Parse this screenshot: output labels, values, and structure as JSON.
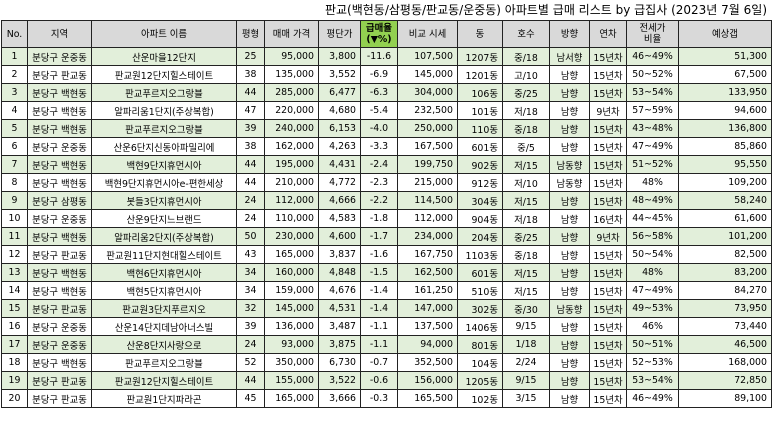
{
  "title": "판교(백현동/삼평동/판교동/운중동) 아파트별 급매 리스트 by 급집사 (2023년 7월 6일)",
  "headers": [
    "No.",
    "지역",
    "아파트 이름",
    "평형",
    "매매 가격",
    "평단가",
    "급매율\n(▼%)",
    "비교 시세",
    "동",
    "호수",
    "방향",
    "연차",
    "전세가\n비율",
    "예상갭"
  ],
  "colors": {
    "header_bg": "#d9d9d9",
    "rate_header_bg": "#92d050",
    "row_band": "#e2efda"
  },
  "rows": [
    {
      "no": "1",
      "region": "분당구 운중동",
      "apt": "산운마을12단지",
      "size": "25",
      "price": "95,000",
      "ppy": "3,800",
      "rate": "-11.6",
      "compare": "107,500",
      "dong": "1207동",
      "ho": "중/18",
      "dir": "남서향",
      "year": "15년차",
      "ratio": "46~49%",
      "gap": "51,300"
    },
    {
      "no": "2",
      "region": "분당구 판교동",
      "apt": "판교원12단지힐스테이트",
      "size": "38",
      "price": "135,000",
      "ppy": "3,552",
      "rate": "-6.9",
      "compare": "145,000",
      "dong": "1201동",
      "ho": "고/10",
      "dir": "남향",
      "year": "15년차",
      "ratio": "50~52%",
      "gap": "67,500"
    },
    {
      "no": "3",
      "region": "분당구 백현동",
      "apt": "판교푸르지오그랑블",
      "size": "44",
      "price": "285,000",
      "ppy": "6,477",
      "rate": "-6.3",
      "compare": "304,000",
      "dong": "106동",
      "ho": "중/25",
      "dir": "남향",
      "year": "15년차",
      "ratio": "53~54%",
      "gap": "133,950"
    },
    {
      "no": "4",
      "region": "분당구 백현동",
      "apt": "알파리움1단지(주상복합)",
      "size": "47",
      "price": "220,000",
      "ppy": "4,680",
      "rate": "-5.4",
      "compare": "232,500",
      "dong": "101동",
      "ho": "저/18",
      "dir": "남향",
      "year": "9년차",
      "ratio": "57~59%",
      "gap": "94,600"
    },
    {
      "no": "5",
      "region": "분당구 백현동",
      "apt": "판교푸르지오그랑블",
      "size": "39",
      "price": "240,000",
      "ppy": "6,153",
      "rate": "-4.0",
      "compare": "250,000",
      "dong": "110동",
      "ho": "중/18",
      "dir": "남향",
      "year": "15년차",
      "ratio": "43~48%",
      "gap": "136,800"
    },
    {
      "no": "6",
      "region": "분당구 운중동",
      "apt": "산운6단지신동아파밀리에",
      "size": "38",
      "price": "162,000",
      "ppy": "4,263",
      "rate": "-3.3",
      "compare": "167,500",
      "dong": "601동",
      "ho": "중/5",
      "dir": "남향",
      "year": "15년차",
      "ratio": "47~49%",
      "gap": "85,860"
    },
    {
      "no": "7",
      "region": "분당구 백현동",
      "apt": "백현9단지휴먼시아",
      "size": "44",
      "price": "195,000",
      "ppy": "4,431",
      "rate": "-2.4",
      "compare": "199,750",
      "dong": "902동",
      "ho": "저/15",
      "dir": "남동향",
      "year": "15년차",
      "ratio": "51~52%",
      "gap": "95,550"
    },
    {
      "no": "8",
      "region": "분당구 백현동",
      "apt": "백현9단지휴먼시아e-편한세상",
      "size": "44",
      "price": "210,000",
      "ppy": "4,772",
      "rate": "-2.3",
      "compare": "215,000",
      "dong": "912동",
      "ho": "저/10",
      "dir": "남동향",
      "year": "15년차",
      "ratio": "48%",
      "gap": "109,200"
    },
    {
      "no": "9",
      "region": "분당구 삼평동",
      "apt": "봇들3단지휴먼시아",
      "size": "24",
      "price": "112,000",
      "ppy": "4,666",
      "rate": "-2.2",
      "compare": "114,500",
      "dong": "304동",
      "ho": "저/15",
      "dir": "남향",
      "year": "15년차",
      "ratio": "48~49%",
      "gap": "58,240"
    },
    {
      "no": "10",
      "region": "분당구 운중동",
      "apt": "산운9단지느브랜드",
      "size": "24",
      "price": "110,000",
      "ppy": "4,583",
      "rate": "-1.8",
      "compare": "112,000",
      "dong": "904동",
      "ho": "저/18",
      "dir": "남향",
      "year": "16년차",
      "ratio": "44~45%",
      "gap": "61,600"
    },
    {
      "no": "11",
      "region": "분당구 백현동",
      "apt": "알파리움2단지(주상복합)",
      "size": "50",
      "price": "230,000",
      "ppy": "4,600",
      "rate": "-1.7",
      "compare": "234,000",
      "dong": "204동",
      "ho": "중/25",
      "dir": "남향",
      "year": "9년차",
      "ratio": "56~58%",
      "gap": "101,200"
    },
    {
      "no": "12",
      "region": "분당구 판교동",
      "apt": "판교원11단지현대힐스테이트",
      "size": "43",
      "price": "165,000",
      "ppy": "3,837",
      "rate": "-1.6",
      "compare": "167,750",
      "dong": "1103동",
      "ho": "중/18",
      "dir": "남향",
      "year": "15년차",
      "ratio": "50~54%",
      "gap": "82,500"
    },
    {
      "no": "13",
      "region": "분당구 백현동",
      "apt": "백현6단지휴먼시아",
      "size": "34",
      "price": "160,000",
      "ppy": "4,848",
      "rate": "-1.5",
      "compare": "162,500",
      "dong": "601동",
      "ho": "저/15",
      "dir": "남향",
      "year": "15년차",
      "ratio": "48%",
      "gap": "83,200"
    },
    {
      "no": "14",
      "region": "분당구 백현동",
      "apt": "백현5단지휴먼시아",
      "size": "34",
      "price": "159,000",
      "ppy": "4,676",
      "rate": "-1.4",
      "compare": "161,250",
      "dong": "510동",
      "ho": "저/15",
      "dir": "남향",
      "year": "15년차",
      "ratio": "47~49%",
      "gap": "84,270"
    },
    {
      "no": "15",
      "region": "분당구 판교동",
      "apt": "판교원3단지푸르지오",
      "size": "32",
      "price": "145,000",
      "ppy": "4,531",
      "rate": "-1.4",
      "compare": "147,000",
      "dong": "302동",
      "ho": "중/30",
      "dir": "남동향",
      "year": "15년차",
      "ratio": "49~53%",
      "gap": "73,950"
    },
    {
      "no": "16",
      "region": "분당구 운중동",
      "apt": "산운14단지데남아너스빌",
      "size": "39",
      "price": "136,000",
      "ppy": "3,487",
      "rate": "-1.1",
      "compare": "137,500",
      "dong": "1406동",
      "ho": "9/15",
      "dir": "남향",
      "year": "15년차",
      "ratio": "46%",
      "gap": "73,440"
    },
    {
      "no": "17",
      "region": "분당구 운중동",
      "apt": "산운8단지사랑으로",
      "size": "24",
      "price": "93,000",
      "ppy": "3,875",
      "rate": "-1.1",
      "compare": "94,000",
      "dong": "801동",
      "ho": "1/18",
      "dir": "남향",
      "year": "15년차",
      "ratio": "50~51%",
      "gap": "46,500"
    },
    {
      "no": "18",
      "region": "분당구 백현동",
      "apt": "판교푸르지오그랑블",
      "size": "52",
      "price": "350,000",
      "ppy": "6,730",
      "rate": "-0.7",
      "compare": "352,500",
      "dong": "104동",
      "ho": "2/24",
      "dir": "남향",
      "year": "15년차",
      "ratio": "52~53%",
      "gap": "168,000"
    },
    {
      "no": "19",
      "region": "분당구 판교동",
      "apt": "판교원12단지힐스테이트",
      "size": "44",
      "price": "155,000",
      "ppy": "3,522",
      "rate": "-0.6",
      "compare": "156,000",
      "dong": "1205동",
      "ho": "9/15",
      "dir": "남향",
      "year": "15년차",
      "ratio": "53~54%",
      "gap": "72,850"
    },
    {
      "no": "20",
      "region": "분당구 판교동",
      "apt": "판교원1단지파라곤",
      "size": "45",
      "price": "165,000",
      "ppy": "3,666",
      "rate": "-0.3",
      "compare": "165,500",
      "dong": "102동",
      "ho": "3/15",
      "dir": "남향",
      "year": "15년차",
      "ratio": "46~49%",
      "gap": "89,100"
    }
  ]
}
